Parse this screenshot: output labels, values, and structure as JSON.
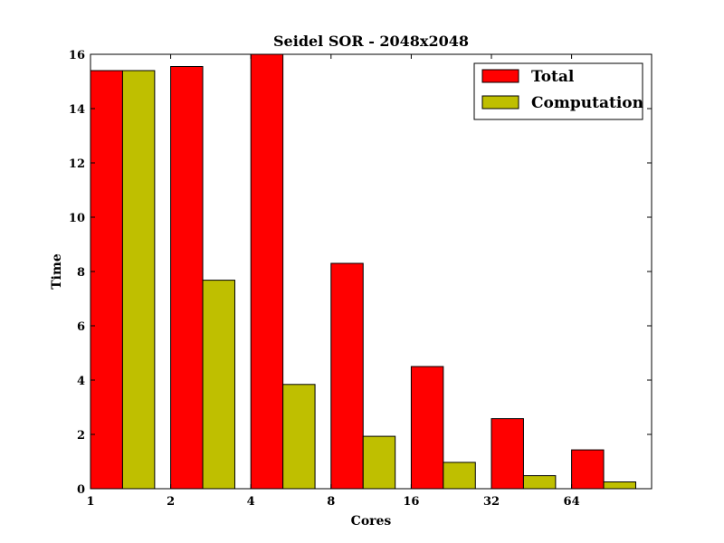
{
  "chart_data": {
    "type": "bar",
    "title": "Seidel SOR - 2048x2048",
    "xlabel": "Cores",
    "ylabel": "Time",
    "categories": [
      "1",
      "2",
      "4",
      "8",
      "16",
      "32",
      "64"
    ],
    "ylim": [
      0,
      16
    ],
    "yticks": [
      "0",
      "2",
      "4",
      "6",
      "8",
      "10",
      "12",
      "14",
      "16"
    ],
    "grid": false,
    "legend_position": "top-right",
    "series": [
      {
        "name": "Total",
        "color": "#ff0000",
        "values": [
          15.4,
          15.55,
          16.0,
          8.3,
          4.5,
          2.58,
          1.43
        ]
      },
      {
        "name": "Computation",
        "color": "#bfbf00",
        "values": [
          15.4,
          7.68,
          3.84,
          1.93,
          0.97,
          0.48,
          0.25
        ]
      }
    ]
  }
}
